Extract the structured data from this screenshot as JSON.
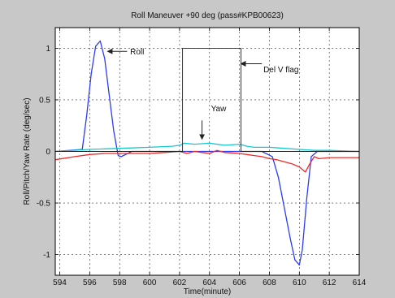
{
  "chart_data": {
    "type": "line",
    "title": "Roll Maneuver +90 deg (pass#KPB00623)",
    "xlabel": "Time(minute)",
    "ylabel": "Roll/Pitch/Yaw Rate (deg/sec)",
    "xlim": [
      593.7,
      614
    ],
    "ylim": [
      -1.2,
      1.2
    ],
    "xticks": [
      "594",
      "596",
      "598",
      "600",
      "602",
      "604",
      "606",
      "608",
      "610",
      "612",
      "614"
    ],
    "yticks": [
      "1",
      "0.5",
      "0",
      "-0.5",
      "-1"
    ],
    "grid": true,
    "colors": {
      "roll": "#2b3cf5",
      "pitch": "#f02a2a",
      "yaw": "#14c8d0",
      "flag": "#222222",
      "background": "#c8c8c8"
    },
    "series": [
      {
        "name": "Roll",
        "x": [
          593.7,
          595.5,
          595.8,
          596.1,
          596.4,
          596.7,
          597.0,
          597.3,
          597.6,
          597.9,
          598.1,
          598.4,
          598.8,
          599.5,
          600.5,
          602,
          604,
          606,
          607.5,
          608.2,
          608.6,
          609.0,
          609.4,
          609.7,
          610.0,
          610.2,
          610.5,
          610.8,
          611.2,
          612,
          614
        ],
        "y": [
          0,
          0.02,
          0.35,
          0.75,
          1.02,
          1.07,
          0.9,
          0.55,
          0.2,
          -0.04,
          -0.05,
          -0.03,
          0.0,
          0.0,
          0.0,
          0.0,
          0.0,
          0.0,
          0.0,
          -0.05,
          -0.25,
          -0.55,
          -0.85,
          -1.05,
          -1.1,
          -0.95,
          -0.45,
          -0.05,
          0.0,
          0.0,
          0.0
        ]
      },
      {
        "name": "Pitch",
        "x": [
          593.7,
          595,
          596,
          597,
          598,
          599,
          600,
          601,
          602,
          602.5,
          603,
          603.5,
          604,
          604.5,
          605,
          606,
          606.5,
          607,
          607.5,
          608,
          608.5,
          609,
          609.5,
          610,
          610.4,
          610.7,
          611.0,
          611.3,
          612,
          613,
          614
        ],
        "y": [
          -0.08,
          -0.05,
          -0.03,
          -0.02,
          -0.02,
          -0.02,
          -0.02,
          -0.01,
          0.0,
          -0.02,
          0.0,
          -0.01,
          -0.02,
          0.01,
          -0.01,
          -0.02,
          -0.03,
          -0.04,
          -0.05,
          -0.07,
          -0.08,
          -0.1,
          -0.12,
          -0.15,
          -0.2,
          -0.12,
          -0.05,
          -0.07,
          -0.06,
          -0.06,
          -0.06
        ]
      },
      {
        "name": "Yaw",
        "x": [
          593.7,
          596,
          598,
          600,
          601.5,
          602,
          602.3,
          603,
          604,
          605,
          606,
          606.5,
          607,
          608,
          609,
          610,
          611,
          612,
          614
        ],
        "y": [
          0.0,
          0.02,
          0.03,
          0.04,
          0.05,
          0.06,
          0.08,
          0.07,
          0.08,
          0.06,
          0.07,
          0.05,
          0.04,
          0.04,
          0.03,
          0.02,
          0.01,
          0.01,
          0.0
        ]
      },
      {
        "name": "Del V flag",
        "x": [
          593.7,
          602.2,
          602.2,
          606.1,
          606.1,
          614
        ],
        "y": [
          0,
          0,
          1.0,
          1.0,
          0,
          0
        ]
      }
    ],
    "annotations": [
      {
        "text": "Roll",
        "x": 598.7,
        "y": 0.97,
        "arrow_from": [
          598.5,
          0.97
        ],
        "arrow_to": [
          597.2,
          0.97
        ]
      },
      {
        "text": "Del V flag",
        "x": 607.6,
        "y": 0.8,
        "arrow_from": [
          607.5,
          0.85
        ],
        "arrow_to": [
          606.1,
          0.85
        ]
      },
      {
        "text": "Yaw",
        "x": 604.1,
        "y": 0.42,
        "arrow_from": [
          603.5,
          0.3
        ],
        "arrow_to": [
          603.5,
          0.12
        ]
      }
    ]
  }
}
